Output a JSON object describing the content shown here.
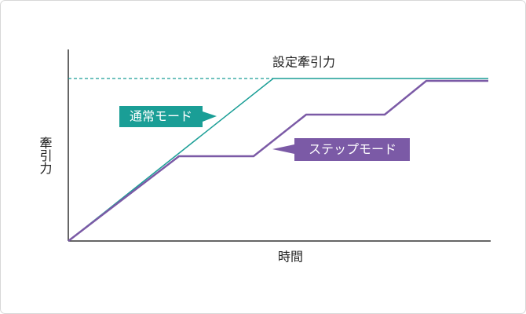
{
  "title_label": "設定牽引力",
  "y_axis_label": "牽引力",
  "x_axis_label": "時間",
  "callouts": [
    {
      "label": "通常モード"
    },
    {
      "label": "ステップモード"
    }
  ]
}
